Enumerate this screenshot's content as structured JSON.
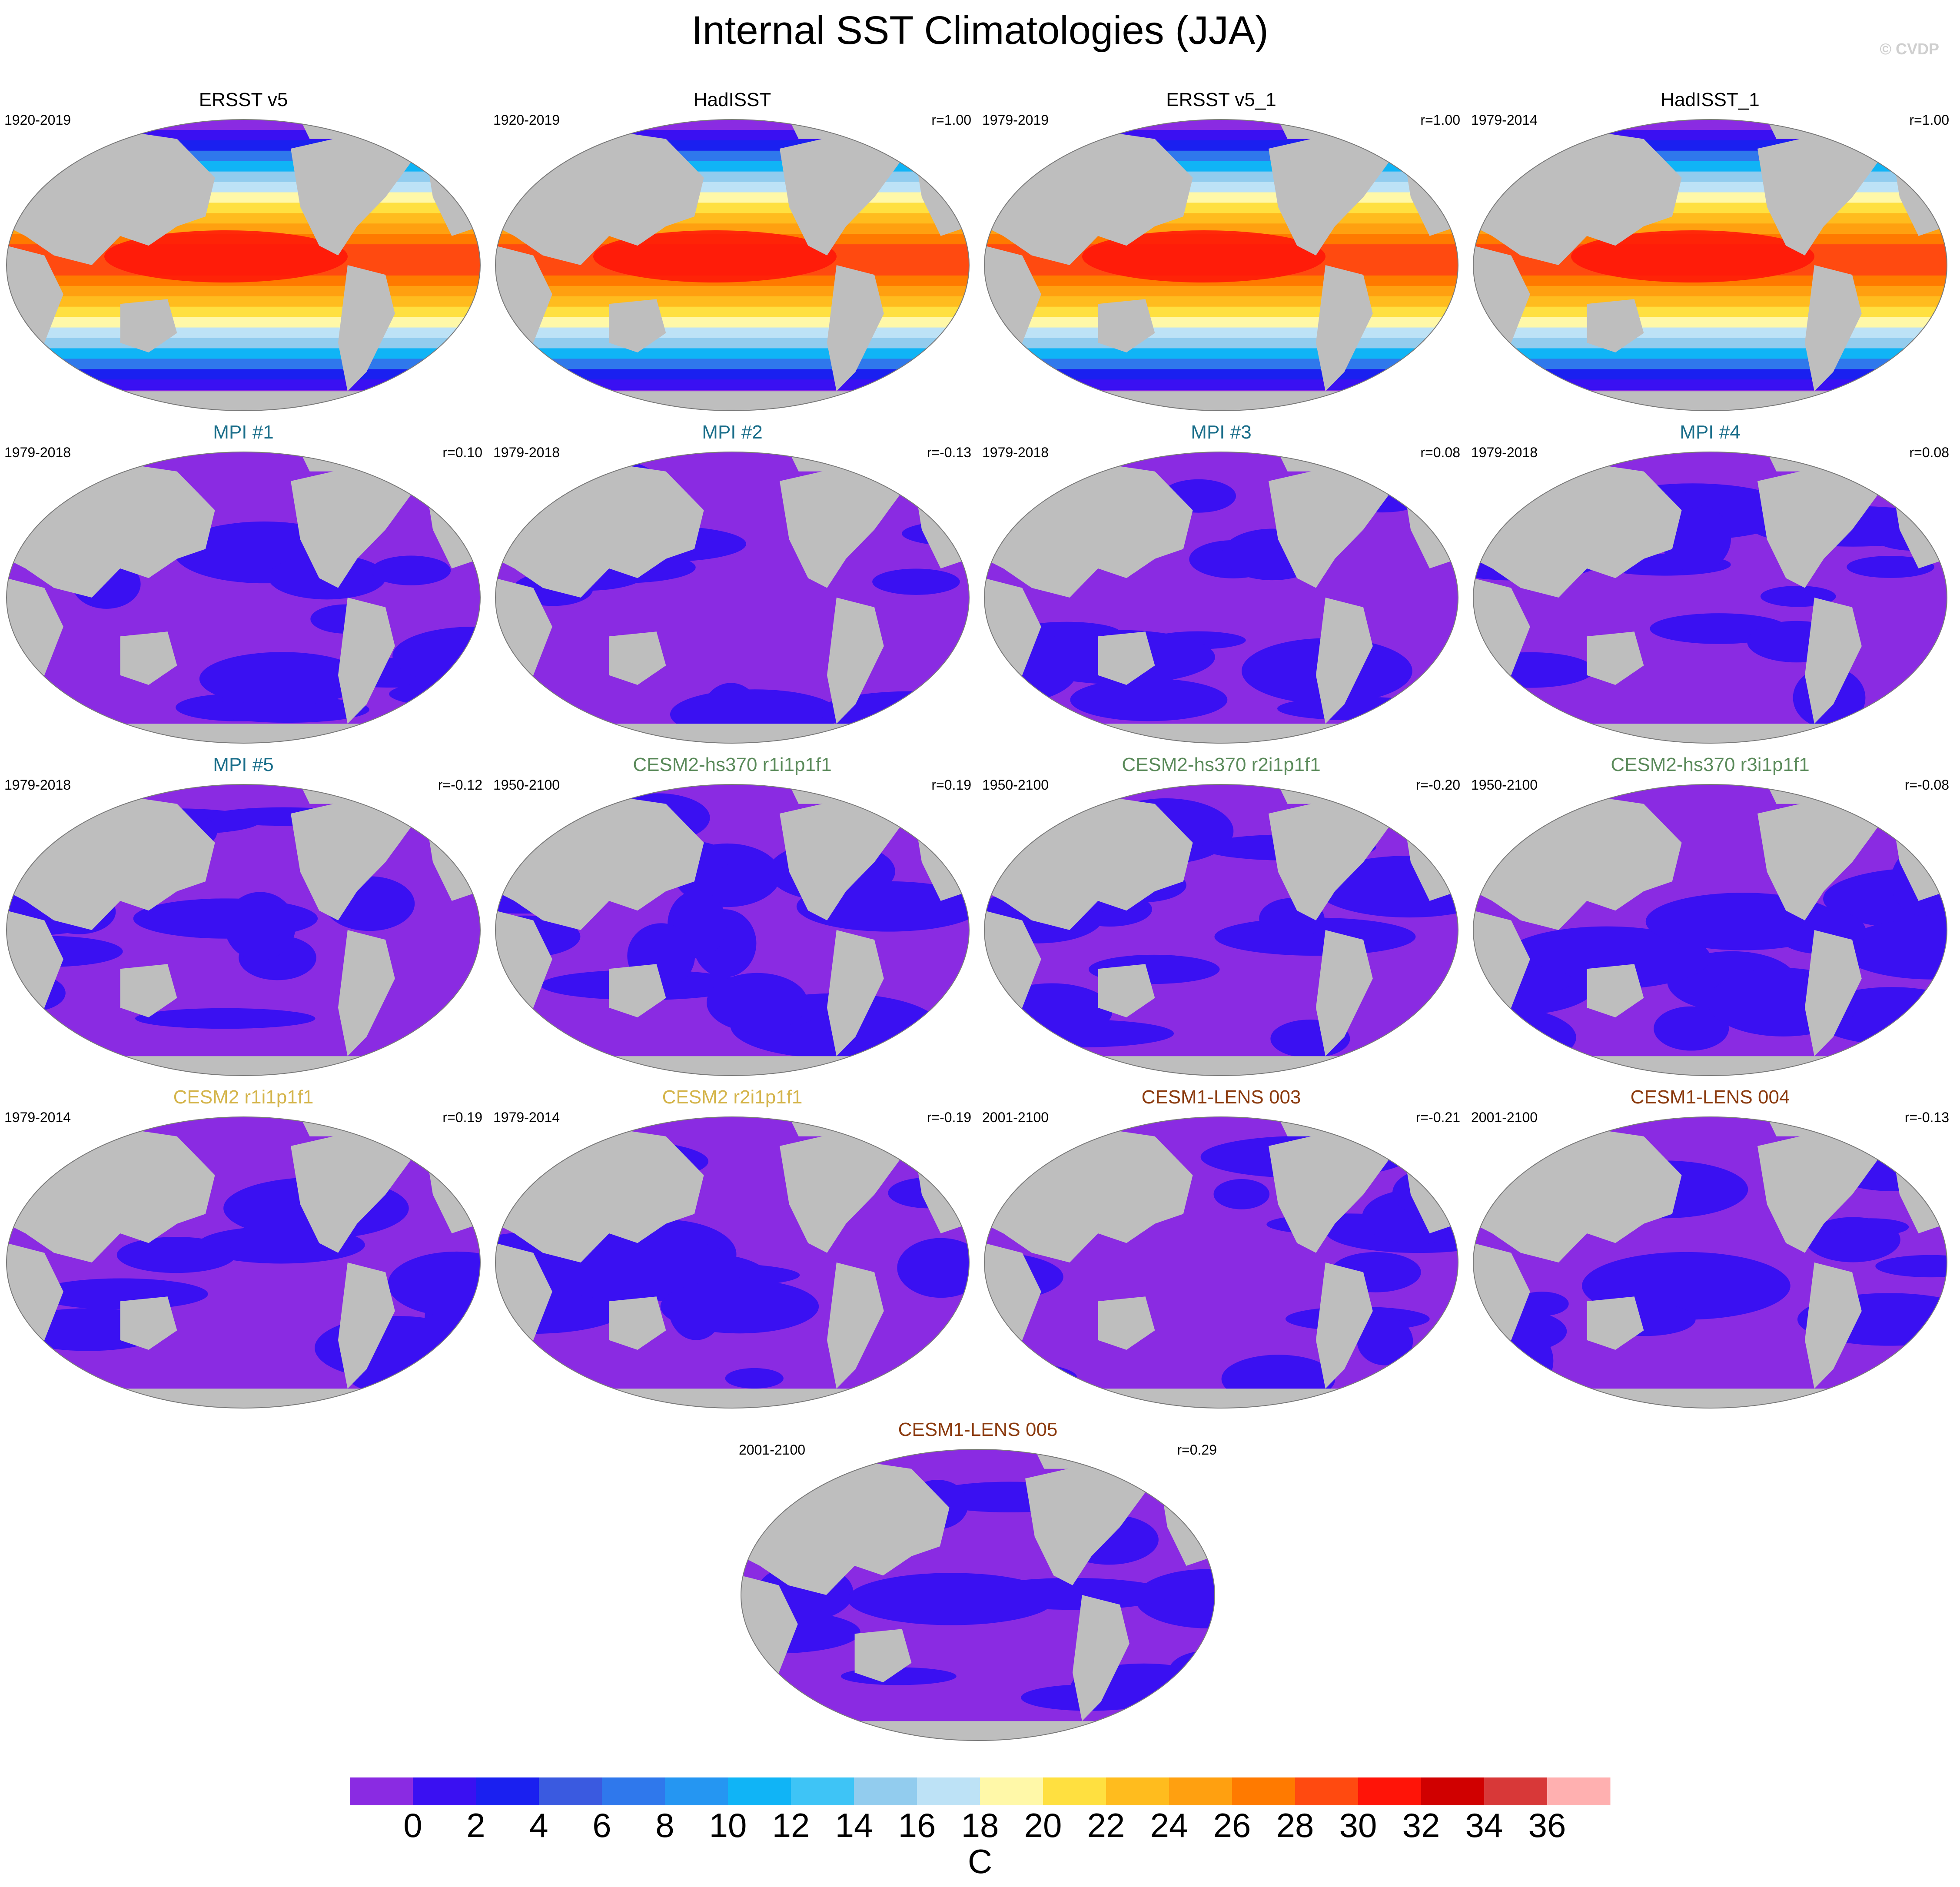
{
  "title": "Internal SST Climatologies (JJA)",
  "copyright": "© CVDP",
  "colorbar": {
    "unit": "C",
    "ticks": [
      "0",
      "2",
      "4",
      "6",
      "8",
      "10",
      "12",
      "14",
      "16",
      "18",
      "20",
      "22",
      "24",
      "26",
      "28",
      "30",
      "32",
      "34",
      "36"
    ],
    "colors": [
      "#8a2be2",
      "#3a10f2",
      "#1a20f0",
      "#3a5ae0",
      "#2f78ec",
      "#2596f2",
      "#10b4f6",
      "#3ec4f6",
      "#92ccee",
      "#bde2f6",
      "#fff8a8",
      "#ffe040",
      "#ffbc1e",
      "#ffa010",
      "#ff7a00",
      "#ff4a10",
      "#ff1408",
      "#d00000",
      "#d83838",
      "#ffb0b0"
    ]
  },
  "land_color": "#bebebe",
  "panels": [
    {
      "title": "ERSST v5",
      "title_color": "#000000",
      "period": "1920-2019",
      "corr": "",
      "kind": "obs"
    },
    {
      "title": "HadISST",
      "title_color": "#000000",
      "period": "1920-2019",
      "corr": "r=1.00",
      "kind": "obs"
    },
    {
      "title": "ERSST v5_1",
      "title_color": "#000000",
      "period": "1979-2019",
      "corr": "r=1.00",
      "kind": "obs"
    },
    {
      "title": "HadISST_1",
      "title_color": "#000000",
      "period": "1979-2014",
      "corr": "r=1.00",
      "kind": "obs"
    },
    {
      "title": "MPI #1",
      "title_color": "#1a6e8a",
      "period": "1979-2018",
      "corr": "r=0.10",
      "kind": "model"
    },
    {
      "title": "MPI #2",
      "title_color": "#1a6e8a",
      "period": "1979-2018",
      "corr": "r=-0.13",
      "kind": "model"
    },
    {
      "title": "MPI #3",
      "title_color": "#1a6e8a",
      "period": "1979-2018",
      "corr": "r=0.08",
      "kind": "model"
    },
    {
      "title": "MPI #4",
      "title_color": "#1a6e8a",
      "period": "1979-2018",
      "corr": "r=0.08",
      "kind": "model"
    },
    {
      "title": "MPI #5",
      "title_color": "#1a6e8a",
      "period": "1979-2018",
      "corr": "r=-0.12",
      "kind": "model"
    },
    {
      "title": "CESM2-hs370 r1i1p1f1",
      "title_color": "#5a8a5a",
      "period": "1950-2100",
      "corr": "r=0.19",
      "kind": "model"
    },
    {
      "title": "CESM2-hs370 r2i1p1f1",
      "title_color": "#5a8a5a",
      "period": "1950-2100",
      "corr": "r=-0.20",
      "kind": "model"
    },
    {
      "title": "CESM2-hs370 r3i1p1f1",
      "title_color": "#5a8a5a",
      "period": "1950-2100",
      "corr": "r=-0.08",
      "kind": "model"
    },
    {
      "title": "CESM2 r1i1p1f1",
      "title_color": "#d4b44a",
      "period": "1979-2014",
      "corr": "r=0.19",
      "kind": "model"
    },
    {
      "title": "CESM2 r2i1p1f1",
      "title_color": "#d4b44a",
      "period": "1979-2014",
      "corr": "r=-0.19",
      "kind": "model"
    },
    {
      "title": "CESM1-LENS 003",
      "title_color": "#8b3a0e",
      "period": "2001-2100",
      "corr": "r=-0.21",
      "kind": "model"
    },
    {
      "title": "CESM1-LENS 004",
      "title_color": "#8b3a0e",
      "period": "2001-2100",
      "corr": "r=-0.13",
      "kind": "model"
    },
    {
      "title": "CESM1-LENS 005",
      "title_color": "#8b3a0e",
      "period": "2001-2100",
      "corr": "r=0.29",
      "kind": "model"
    }
  ]
}
